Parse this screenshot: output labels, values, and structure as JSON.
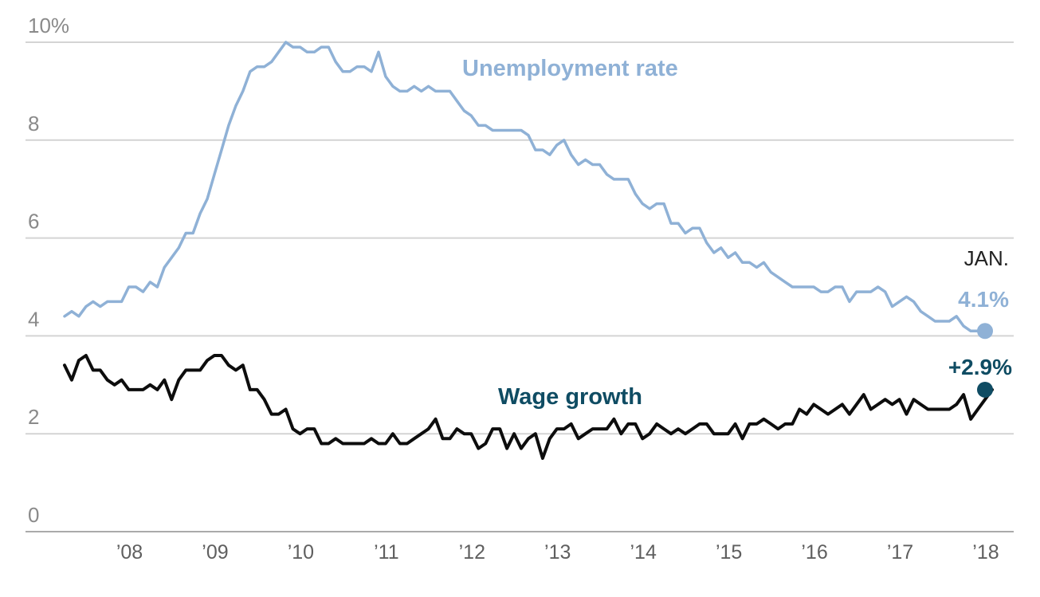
{
  "chart_data": {
    "type": "line",
    "title": "",
    "xlabel": "",
    "ylabel": "",
    "ylim": [
      0,
      10
    ],
    "y_ticks": [
      {
        "value": 0,
        "label": "0"
      },
      {
        "value": 2,
        "label": "2"
      },
      {
        "value": 4,
        "label": "4"
      },
      {
        "value": 6,
        "label": "6"
      },
      {
        "value": 8,
        "label": "8"
      },
      {
        "value": 10,
        "label": "10%"
      }
    ],
    "x_ticks": [
      {
        "value": 2008,
        "label": "’08"
      },
      {
        "value": 2009,
        "label": "’09"
      },
      {
        "value": 2010,
        "label": "’10"
      },
      {
        "value": 2011,
        "label": "’11"
      },
      {
        "value": 2012,
        "label": "’12"
      },
      {
        "value": 2013,
        "label": "’13"
      },
      {
        "value": 2014,
        "label": "’14"
      },
      {
        "value": 2015,
        "label": "’15"
      },
      {
        "value": 2016,
        "label": "’16"
      },
      {
        "value": 2017,
        "label": "’17"
      },
      {
        "value": 2018,
        "label": "’18"
      }
    ],
    "grid": true,
    "x_start": "2007-03",
    "x_step": "month",
    "series": [
      {
        "name": "Unemployment rate",
        "color": "#8fb1d6",
        "values": [
          4.4,
          4.5,
          4.4,
          4.6,
          4.7,
          4.6,
          4.7,
          4.7,
          4.7,
          5.0,
          5.0,
          4.9,
          5.1,
          5.0,
          5.4,
          5.6,
          5.8,
          6.1,
          6.1,
          6.5,
          6.8,
          7.3,
          7.8,
          8.3,
          8.7,
          9.0,
          9.4,
          9.5,
          9.5,
          9.6,
          9.8,
          10.0,
          9.9,
          9.9,
          9.8,
          9.8,
          9.9,
          9.9,
          9.6,
          9.4,
          9.4,
          9.5,
          9.5,
          9.4,
          9.8,
          9.3,
          9.1,
          9.0,
          9.0,
          9.1,
          9.0,
          9.1,
          9.0,
          9.0,
          9.0,
          8.8,
          8.6,
          8.5,
          8.3,
          8.3,
          8.2,
          8.2,
          8.2,
          8.2,
          8.2,
          8.1,
          7.8,
          7.8,
          7.7,
          7.9,
          8.0,
          7.7,
          7.5,
          7.6,
          7.5,
          7.5,
          7.3,
          7.2,
          7.2,
          7.2,
          6.9,
          6.7,
          6.6,
          6.7,
          6.7,
          6.3,
          6.3,
          6.1,
          6.2,
          6.2,
          5.9,
          5.7,
          5.8,
          5.6,
          5.7,
          5.5,
          5.5,
          5.4,
          5.5,
          5.3,
          5.2,
          5.1,
          5.0,
          5.0,
          5.0,
          5.0,
          4.9,
          4.9,
          5.0,
          5.0,
          4.7,
          4.9,
          4.9,
          4.9,
          5.0,
          4.9,
          4.6,
          4.7,
          4.8,
          4.7,
          4.5,
          4.4,
          4.3,
          4.3,
          4.3,
          4.4,
          4.2,
          4.1,
          4.1,
          4.1
        ]
      },
      {
        "name": "Wage growth",
        "color": "#0d0d0d",
        "label_color": "#0f4c63",
        "values": [
          3.4,
          3.1,
          3.5,
          3.6,
          3.3,
          3.3,
          3.1,
          3.0,
          3.1,
          2.9,
          2.9,
          2.9,
          3.0,
          2.9,
          3.1,
          2.7,
          3.1,
          3.3,
          3.3,
          3.3,
          3.5,
          3.6,
          3.6,
          3.4,
          3.3,
          3.4,
          2.9,
          2.9,
          2.7,
          2.4,
          2.4,
          2.5,
          2.1,
          2.0,
          2.1,
          2.1,
          1.8,
          1.8,
          1.9,
          1.8,
          1.8,
          1.8,
          1.8,
          1.9,
          1.8,
          1.8,
          2.0,
          1.8,
          1.8,
          1.9,
          2.0,
          2.1,
          2.3,
          1.9,
          1.9,
          2.1,
          2.0,
          2.0,
          1.7,
          1.8,
          2.1,
          2.1,
          1.7,
          2.0,
          1.7,
          1.9,
          2.0,
          1.5,
          1.9,
          2.1,
          2.1,
          2.2,
          1.9,
          2.0,
          2.1,
          2.1,
          2.1,
          2.3,
          2.0,
          2.2,
          2.2,
          1.9,
          2.0,
          2.2,
          2.1,
          2.0,
          2.1,
          2.0,
          2.1,
          2.2,
          2.2,
          2.0,
          2.0,
          2.0,
          2.2,
          1.9,
          2.2,
          2.2,
          2.3,
          2.2,
          2.1,
          2.2,
          2.2,
          2.5,
          2.4,
          2.6,
          2.5,
          2.4,
          2.5,
          2.6,
          2.4,
          2.6,
          2.8,
          2.5,
          2.6,
          2.7,
          2.6,
          2.7,
          2.4,
          2.7,
          2.6,
          2.5,
          2.5,
          2.5,
          2.5,
          2.6,
          2.8,
          2.3,
          2.5,
          2.7,
          2.9
        ]
      }
    ],
    "annotations": {
      "unemployment_label": "Unemployment rate",
      "wage_label": "Wage growth",
      "month_label": "JAN.",
      "unemployment_end_label": "4.1%",
      "wage_end_label": "+2.9%",
      "unemployment_end_value": 4.1,
      "wage_end_value": 2.9
    }
  }
}
